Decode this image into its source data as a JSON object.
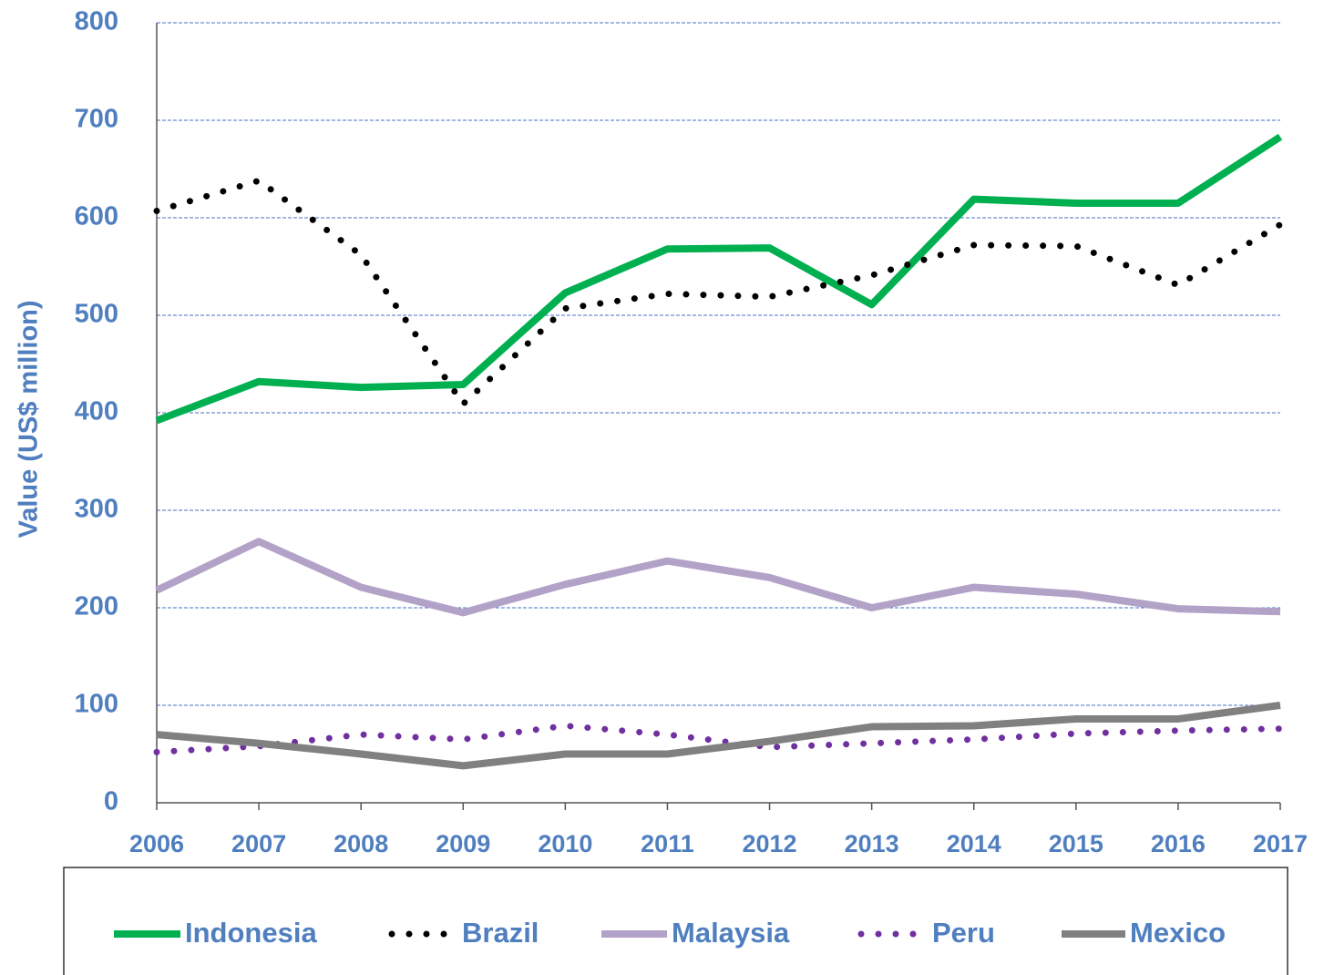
{
  "chart_data": {
    "type": "line",
    "y_label": "Value (US$ million)",
    "categories": [
      "2006",
      "2007",
      "2008",
      "2009",
      "2010",
      "2011",
      "2012",
      "2013",
      "2014",
      "2015",
      "2016",
      "2017"
    ],
    "series": [
      {
        "name": "Indonesia",
        "color": "#00b050",
        "dash": "solid",
        "values": [
          392,
          432,
          426,
          429,
          523,
          568,
          569,
          511,
          619,
          615,
          615,
          683
        ]
      },
      {
        "name": "Brazil",
        "color": "#000000",
        "dash": "dotted",
        "values": [
          607,
          638,
          562,
          409,
          507,
          522,
          519,
          541,
          572,
          571,
          531,
          593
        ]
      },
      {
        "name": "Malaysia",
        "color": "#b3a2c7",
        "dash": "solid",
        "values": [
          218,
          268,
          221,
          195,
          224,
          248,
          231,
          200,
          221,
          214,
          199,
          196
        ]
      },
      {
        "name": "Peru",
        "color": "#7030a0",
        "dash": "dotted",
        "values": [
          52,
          58,
          70,
          65,
          79,
          70,
          57,
          61,
          65,
          71,
          74,
          76
        ]
      },
      {
        "name": "Mexico",
        "color": "#808080",
        "dash": "solid",
        "values": [
          70,
          61,
          50,
          38,
          50,
          50,
          63,
          78,
          79,
          86,
          86,
          100
        ]
      }
    ],
    "ylim": [
      0,
      800
    ],
    "yticks": [
      0,
      100,
      200,
      300,
      400,
      500,
      600,
      700,
      800
    ],
    "grid": true
  }
}
